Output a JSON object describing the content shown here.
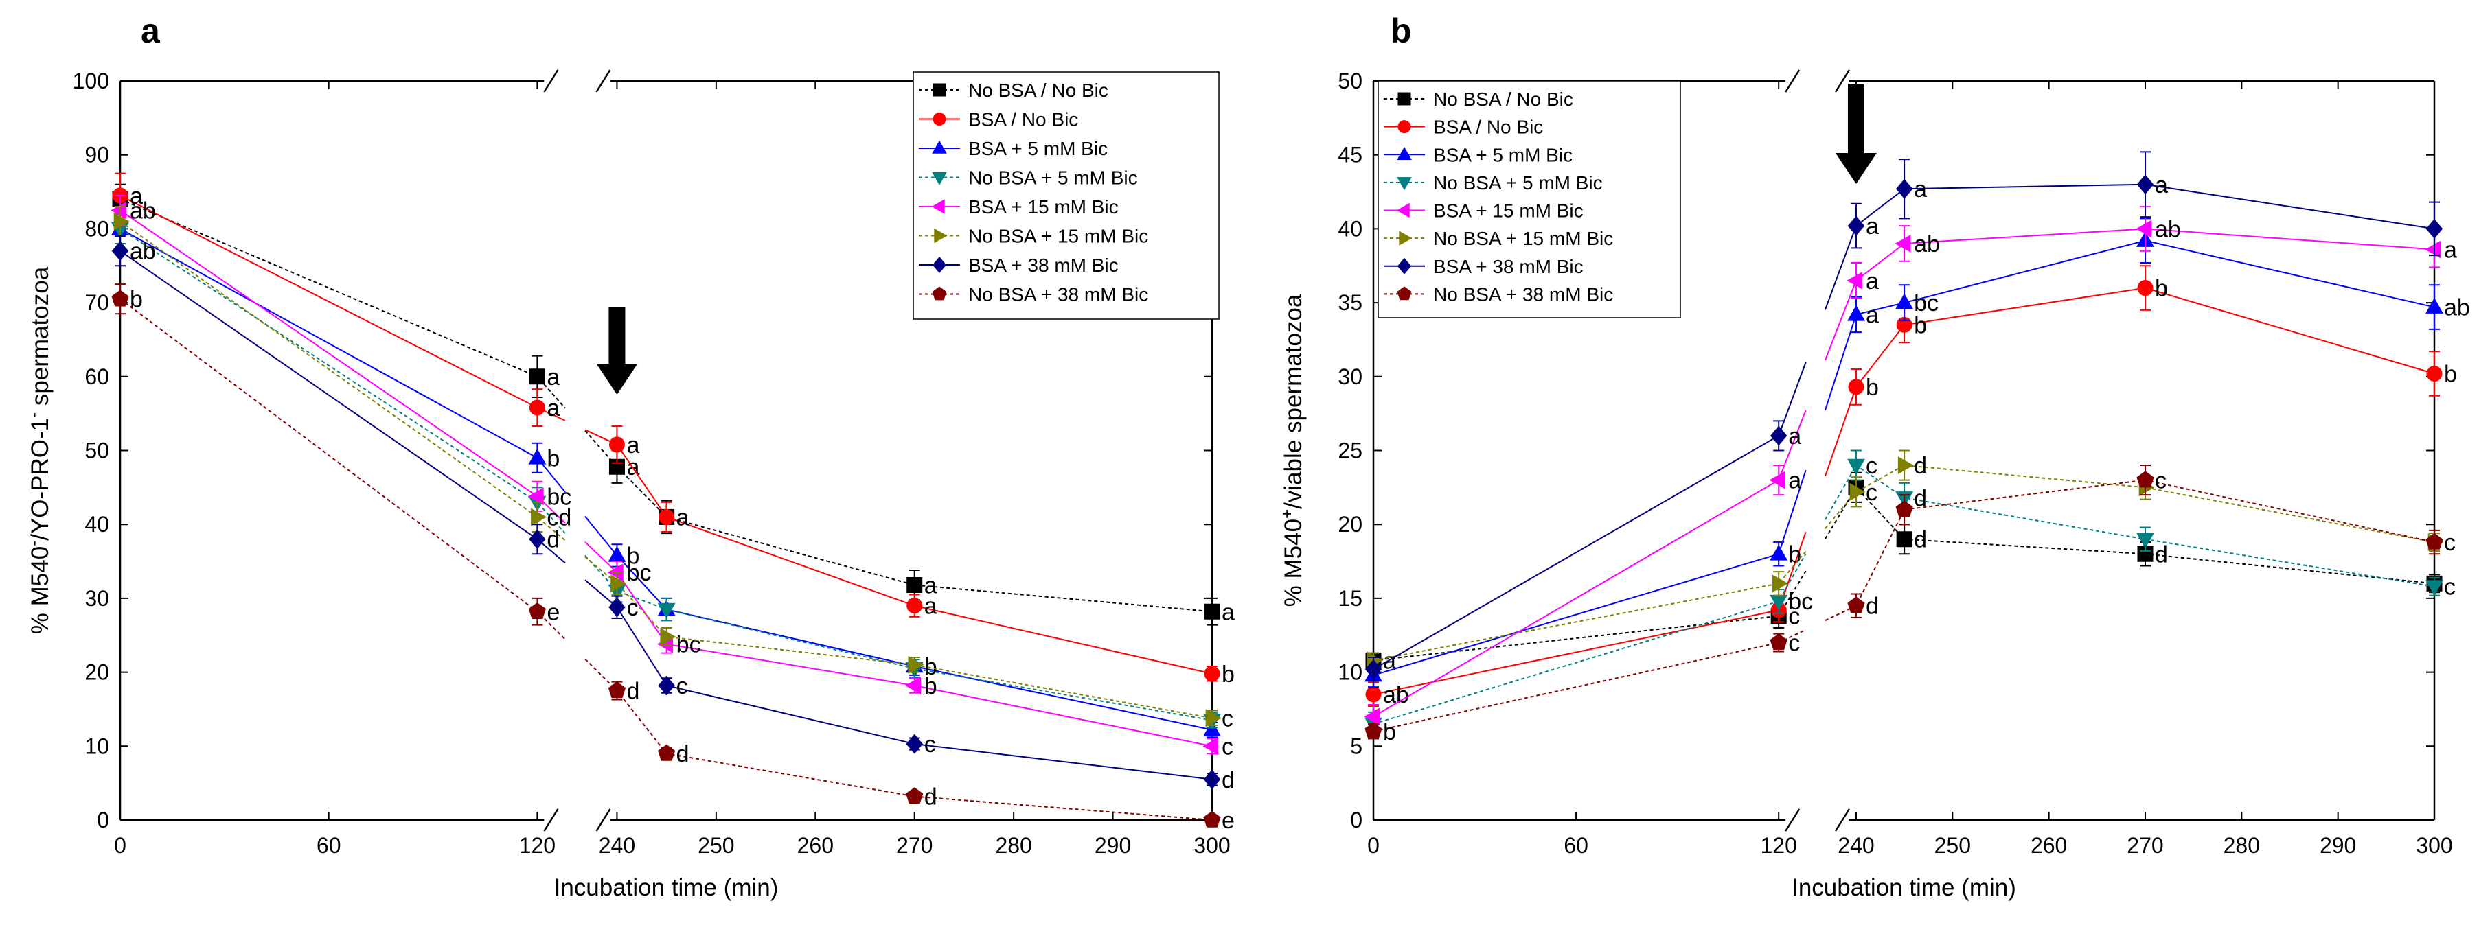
{
  "series_styles": [
    {
      "name": "No BSA / No Bic",
      "color": "#000000",
      "marker": "square",
      "dashed": true
    },
    {
      "name": "BSA / No Bic",
      "color": "#ff0000",
      "marker": "circle",
      "dashed": false
    },
    {
      "name": "BSA + 5 mM Bic",
      "color": "#0000ff",
      "marker": "triangle-up",
      "dashed": false
    },
    {
      "name": "No BSA + 5 mM Bic",
      "color": "#008080",
      "marker": "triangle-down",
      "dashed": true
    },
    {
      "name": "BSA + 15 mM Bic",
      "color": "#ff00ff",
      "marker": "triangle-left",
      "dashed": false
    },
    {
      "name": "No BSA + 15 mM Bic",
      "color": "#808000",
      "marker": "triangle-right",
      "dashed": true
    },
    {
      "name": "BSA + 38 mM Bic",
      "color": "#000080",
      "marker": "diamond",
      "dashed": false
    },
    {
      "name": "No BSA  + 38 mM Bic",
      "color": "#800000",
      "marker": "pentagon",
      "dashed": true
    }
  ],
  "chart_data": [
    {
      "type": "line",
      "panel_label": "a",
      "xlabel": "Incubation time (min)",
      "ylabel_parts": [
        "% M540",
        "-",
        "/YO-PRO-1",
        "-",
        " spermatozoa"
      ],
      "ylim": [
        0,
        100
      ],
      "yticks": [
        0,
        10,
        20,
        30,
        40,
        50,
        60,
        70,
        80,
        90,
        100
      ],
      "xticks": [
        "0",
        "60",
        "120",
        "240",
        "250",
        "260",
        "270",
        "280",
        "290",
        "300"
      ],
      "legend_position": "top-right",
      "arrow_at_x": 240,
      "series": [
        {
          "name": "No BSA / No Bic",
          "x": [
            0,
            120,
            240,
            245,
            270,
            300
          ],
          "y": [
            84,
            60,
            47.8,
            41,
            31.8,
            28.2
          ],
          "err": [
            2,
            2.8,
            2.2,
            2.2,
            2,
            1.8
          ],
          "labels": [
            "",
            "a",
            "a",
            "",
            "a",
            "a"
          ]
        },
        {
          "name": "BSA / No Bic",
          "x": [
            0,
            120,
            240,
            245,
            270,
            300
          ],
          "y": [
            84.5,
            55.8,
            50.8,
            41,
            29,
            19.8
          ],
          "err": [
            3,
            2.5,
            2.5,
            2,
            1.5,
            1
          ],
          "labels": [
            "a",
            "a",
            "a",
            "a",
            "a",
            "b"
          ]
        },
        {
          "name": "BSA + 5 mM Bic",
          "x": [
            0,
            120,
            240,
            245,
            270,
            300
          ],
          "y": [
            80,
            49,
            35.8,
            28.5,
            20.8,
            12.2
          ],
          "err": [
            2,
            2,
            1.5,
            1.5,
            1.2,
            1
          ],
          "labels": [
            "",
            "b",
            "b",
            "",
            "b",
            ""
          ]
        },
        {
          "name": "No BSA + 5 mM Bic",
          "x": [
            0,
            120,
            240,
            245,
            270,
            300
          ],
          "y": [
            80,
            43,
            31,
            28.5,
            20.5,
            13.5
          ],
          "err": [
            2,
            2,
            1.5,
            1.5,
            1.2,
            1
          ],
          "labels": [
            "",
            "",
            "",
            "",
            "",
            ""
          ]
        },
        {
          "name": "BSA + 15 mM Bic",
          "x": [
            0,
            120,
            240,
            245,
            270,
            300
          ],
          "y": [
            82.5,
            43.8,
            33.5,
            23.8,
            18.2,
            10
          ],
          "err": [
            2,
            2,
            1.5,
            1.2,
            1,
            1
          ],
          "labels": [
            "ab",
            "bc",
            "bc",
            "bc",
            "b",
            "c"
          ]
        },
        {
          "name": "No BSA + 15 mM Bic",
          "x": [
            0,
            120,
            240,
            245,
            270,
            300
          ],
          "y": [
            81,
            41,
            32,
            24.8,
            21,
            13.8
          ],
          "err": [
            2,
            2,
            1.5,
            1.2,
            1,
            1
          ],
          "labels": [
            "",
            "cd",
            "",
            "",
            "",
            "c"
          ]
        },
        {
          "name": "BSA + 38 mM Bic",
          "x": [
            0,
            120,
            240,
            245,
            270,
            300
          ],
          "y": [
            77,
            38,
            28.8,
            18.2,
            10.3,
            5.5
          ],
          "err": [
            2,
            2,
            1.5,
            1,
            0.8,
            0.8
          ],
          "labels": [
            "ab",
            "d",
            "c",
            "c",
            "c",
            "d"
          ]
        },
        {
          "name": "No BSA  + 38 mM Bic",
          "x": [
            0,
            120,
            240,
            245,
            270,
            300
          ],
          "y": [
            70.5,
            28.2,
            17.5,
            9,
            3.2,
            0
          ],
          "err": [
            2,
            1.8,
            1.2,
            0.8,
            0.6,
            0.4
          ],
          "labels": [
            "b",
            "e",
            "d",
            "d",
            "d",
            "e"
          ]
        }
      ]
    },
    {
      "type": "line",
      "panel_label": "b",
      "xlabel": "Incubation time (min)",
      "ylabel_parts": [
        "% M540",
        "+",
        "/viable spermatozoa"
      ],
      "ylim": [
        0,
        50
      ],
      "yticks": [
        0,
        5,
        10,
        15,
        20,
        25,
        30,
        35,
        40,
        45,
        50
      ],
      "xticks": [
        "0",
        "60",
        "120",
        "240",
        "250",
        "260",
        "270",
        "280",
        "290",
        "300"
      ],
      "legend_position": "top-left",
      "arrow_at_x": 240,
      "series": [
        {
          "name": "No BSA / No Bic",
          "x": [
            0,
            120,
            240,
            245,
            270,
            300
          ],
          "y": [
            10.8,
            13.8,
            22.5,
            19,
            18,
            16
          ],
          "err": [
            0.5,
            0.8,
            1,
            1,
            0.8,
            0.6
          ],
          "labels": [
            "a",
            "c",
            "",
            "d",
            "d",
            ""
          ]
        },
        {
          "name": "BSA / No Bic",
          "x": [
            0,
            120,
            240,
            245,
            270,
            300
          ],
          "y": [
            8.5,
            14.2,
            29.3,
            33.5,
            36,
            30.2
          ],
          "err": [
            0.8,
            0.8,
            1.2,
            1.2,
            1.5,
            1.5
          ],
          "labels": [
            "ab",
            "",
            "b",
            "b",
            "b",
            "b"
          ]
        },
        {
          "name": "BSA + 5 mM Bic",
          "x": [
            0,
            120,
            240,
            245,
            270,
            300
          ],
          "y": [
            9.8,
            18,
            34.2,
            35,
            39.2,
            34.7
          ],
          "err": [
            0.8,
            0.8,
            1.2,
            1.2,
            1.5,
            1.5
          ],
          "labels": [
            "",
            "b",
            "a",
            "bc",
            "",
            "ab"
          ]
        },
        {
          "name": "No BSA + 5 mM Bic",
          "x": [
            0,
            120,
            240,
            245,
            270,
            300
          ],
          "y": [
            6.5,
            14.8,
            24,
            21.8,
            19,
            15.8
          ],
          "err": [
            0.8,
            0.8,
            1,
            1,
            0.8,
            0.6
          ],
          "labels": [
            "",
            "bc",
            "c",
            "d",
            "",
            "c"
          ]
        },
        {
          "name": "BSA + 15 mM Bic",
          "x": [
            0,
            120,
            240,
            245,
            270,
            300
          ],
          "y": [
            7,
            23,
            36.5,
            39,
            40,
            38.6
          ],
          "err": [
            0.8,
            1,
            1.2,
            1.2,
            1.5,
            1.2
          ],
          "labels": [
            "",
            "a",
            "a",
            "ab",
            "ab",
            "a"
          ]
        },
        {
          "name": "No BSA + 15 mM Bic",
          "x": [
            0,
            120,
            240,
            245,
            270,
            300
          ],
          "y": [
            10.8,
            16,
            22.2,
            24,
            22.5,
            18.8
          ],
          "err": [
            0.5,
            0.8,
            1,
            1,
            0.8,
            0.6
          ],
          "labels": [
            "",
            "",
            "c",
            "d",
            "",
            ""
          ]
        },
        {
          "name": "BSA + 38 mM Bic",
          "x": [
            0,
            120,
            240,
            245,
            270,
            300
          ],
          "y": [
            10.2,
            26,
            40.2,
            42.7,
            43,
            40
          ],
          "err": [
            0.8,
            1,
            1.5,
            2,
            2.2,
            1.8
          ],
          "labels": [
            "",
            "a",
            "a",
            "a",
            "a",
            ""
          ]
        },
        {
          "name": "No BSA  + 38 mM Bic",
          "x": [
            0,
            120,
            240,
            245,
            270,
            300
          ],
          "y": [
            6,
            12,
            14.5,
            21,
            23,
            18.8
          ],
          "err": [
            0.5,
            0.6,
            0.8,
            1,
            1,
            0.8
          ],
          "labels": [
            "b",
            "c",
            "d",
            "",
            "c",
            "c"
          ]
        }
      ]
    }
  ]
}
